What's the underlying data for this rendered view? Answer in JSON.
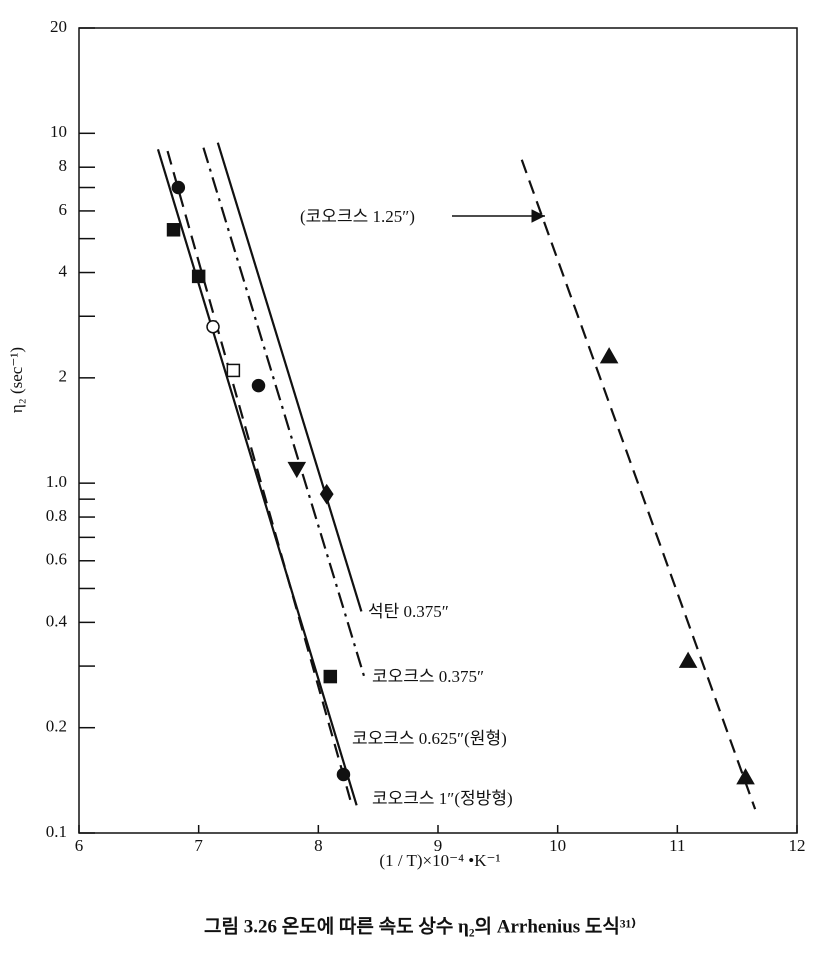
{
  "chart_data": {
    "type": "scatter",
    "caption": "그림 3.26  온도에 따른 속도 상수 η₂의 Arrhenius 도식³¹⁾",
    "xlabel": "(1 / T)×10⁻⁴ •K⁻¹",
    "ylabel": "η₂ (sec⁻¹)",
    "xlim": [
      6,
      12
    ],
    "xticks": [
      6,
      7,
      8,
      9,
      10,
      11,
      12
    ],
    "ylim": [
      0.1,
      20
    ],
    "log_y": true,
    "yticks": [
      20,
      10,
      8,
      6,
      4,
      2,
      {
        "value": 1,
        "label": "1.0"
      },
      {
        "value": 0.8,
        "label": "0.8"
      },
      {
        "value": 0.6,
        "label": "0.6"
      },
      {
        "value": 0.4,
        "label": "0.4"
      },
      {
        "value": 0.2,
        "label": "0.2"
      },
      {
        "value": 0.1,
        "label": "0.1"
      }
    ],
    "yticks_minor": [
      7,
      5,
      3,
      0.9,
      0.7,
      0.5,
      0.3
    ],
    "color": "#111111",
    "series": [
      {
        "name": "석탄 0.375″",
        "marker": [
          "diamond"
        ],
        "x": [
          8.07
        ],
        "values": [
          0.93
        ],
        "line": {
          "style": "solid",
          "x": [
            7.16,
            8.36
          ],
          "values": [
            9.4,
            0.43
          ]
        }
      },
      {
        "name": "코오크스 0.375″",
        "marker": [
          "triangle-down"
        ],
        "x": [
          7.82
        ],
        "values": [
          1.1
        ],
        "line": {
          "style": "dashdot",
          "x": [
            7.04,
            8.39
          ],
          "values": [
            9.1,
            0.275
          ]
        }
      },
      {
        "name": "코오크스 0.625″(원형)",
        "marker": [
          "square",
          "square",
          "square-open",
          "square"
        ],
        "x": [
          6.79,
          7.0,
          7.29,
          8.1
        ],
        "values": [
          5.3,
          3.9,
          2.1,
          0.28
        ],
        "line": {
          "style": "dashed",
          "x": [
            6.74,
            8.28
          ],
          "values": [
            8.9,
            0.12
          ]
        }
      },
      {
        "name": "코오크스 1″(정방형)",
        "marker": [
          "circle",
          "circle-open",
          "circle",
          "circle"
        ],
        "x": [
          6.83,
          7.12,
          7.5,
          8.21
        ],
        "values": [
          7.0,
          2.8,
          1.9,
          0.147
        ],
        "line": {
          "style": "solid",
          "x": [
            6.66,
            8.32
          ],
          "values": [
            9.0,
            0.12
          ]
        }
      },
      {
        "name": "(코오크스 1.25″)",
        "marker": [
          "triangle",
          "triangle",
          "triangle"
        ],
        "x": [
          10.43,
          11.09,
          11.57
        ],
        "values": [
          2.3,
          0.31,
          0.144
        ],
        "line": {
          "style": "dashed",
          "x": [
            9.7,
            11.65
          ],
          "values": [
            8.4,
            0.117
          ]
        }
      }
    ]
  }
}
